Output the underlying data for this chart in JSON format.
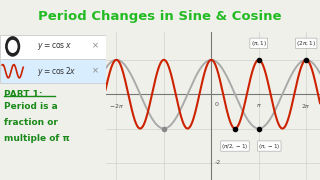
{
  "title": "Period Changes in Sine & Cosine",
  "title_color": "#22bb22",
  "title_fontsize": 9.5,
  "bg_color": "#f0f0eb",
  "graph_bg": "#f8f8f4",
  "cos_x_color": "#aaaaaa",
  "cos_2x_color": "#cc2200",
  "xmin": -7.0,
  "xmax": 7.2,
  "ymin": -2.5,
  "ymax": 1.8,
  "grid_color": "#d0d0cc",
  "axis_color": "#999999",
  "part1_color": "#1a8a1a",
  "part1_text1": "PART 1:",
  "part1_text2": "Period is a",
  "part1_text3": "fraction or",
  "part1_text4": "multiple of π"
}
